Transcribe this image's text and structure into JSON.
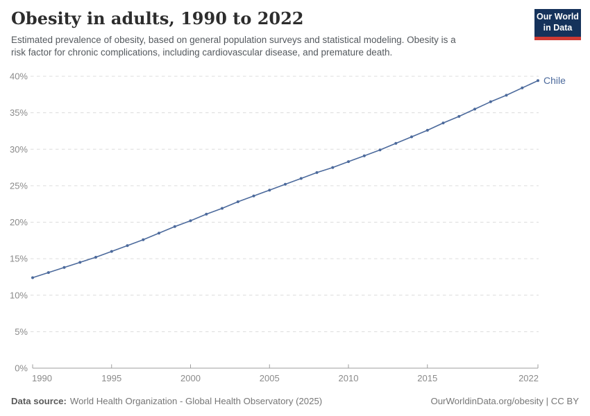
{
  "header": {
    "title": "Obesity in adults, 1990 to 2022",
    "subtitle_line1": "Estimated prevalence of obesity, based on general population surveys and statistical modeling. Obesity is a",
    "subtitle_line2": "risk factor for chronic complications, including cardiovascular disease, and premature death.",
    "logo": {
      "line1": "Our World",
      "line2": "in Data"
    }
  },
  "chart_data": {
    "type": "line",
    "title": "Obesity in adults, 1990 to 2022",
    "xlabel": "",
    "ylabel": "",
    "xlim": [
      1990,
      2022
    ],
    "ylim": [
      0,
      40
    ],
    "grid": "horizontal-dashed",
    "legend_position": "end-of-line-label",
    "x": [
      1990,
      1991,
      1992,
      1993,
      1994,
      1995,
      1996,
      1997,
      1998,
      1999,
      2000,
      2001,
      2002,
      2003,
      2004,
      2005,
      2006,
      2007,
      2008,
      2009,
      2010,
      2011,
      2012,
      2013,
      2014,
      2015,
      2016,
      2017,
      2018,
      2019,
      2020,
      2021,
      2022
    ],
    "series": [
      {
        "name": "Chile",
        "color": "#4c6a9c",
        "values": [
          12.4,
          13.1,
          13.8,
          14.5,
          15.2,
          16.0,
          16.8,
          17.6,
          18.5,
          19.4,
          20.2,
          21.1,
          21.9,
          22.8,
          23.6,
          24.4,
          25.2,
          26.0,
          26.8,
          27.5,
          28.3,
          29.1,
          29.9,
          30.8,
          31.7,
          32.6,
          33.6,
          34.5,
          35.5,
          36.5,
          37.4,
          38.4,
          39.4
        ]
      }
    ],
    "x_ticks": [
      1990,
      1995,
      2000,
      2005,
      2010,
      2015,
      2022
    ],
    "x_tick_labels": [
      "1990",
      "1995",
      "2000",
      "2005",
      "2010",
      "2015",
      "2022"
    ],
    "y_ticks": [
      0,
      5,
      10,
      15,
      20,
      25,
      30,
      35,
      40
    ],
    "y_tick_labels": [
      "0%",
      "5%",
      "10%",
      "15%",
      "20%",
      "25%",
      "30%",
      "35%",
      "40%"
    ]
  },
  "footer": {
    "source_label": "Data source:",
    "source_text": "World Health Organization - Global Health Observatory (2025)",
    "attribution": "OurWorldinData.org/obesity | CC BY"
  },
  "colors": {
    "line": "#4c6a9c",
    "entity_label": "#4c6a9c",
    "logo_bg": "#15325b",
    "logo_accent": "#cf3a34",
    "grid": "#dcdcdc",
    "axis": "#9e9e9e",
    "tick_text": "#8a8a8a",
    "title_text": "#2d2d2d",
    "subtitle_text": "#54595e"
  }
}
